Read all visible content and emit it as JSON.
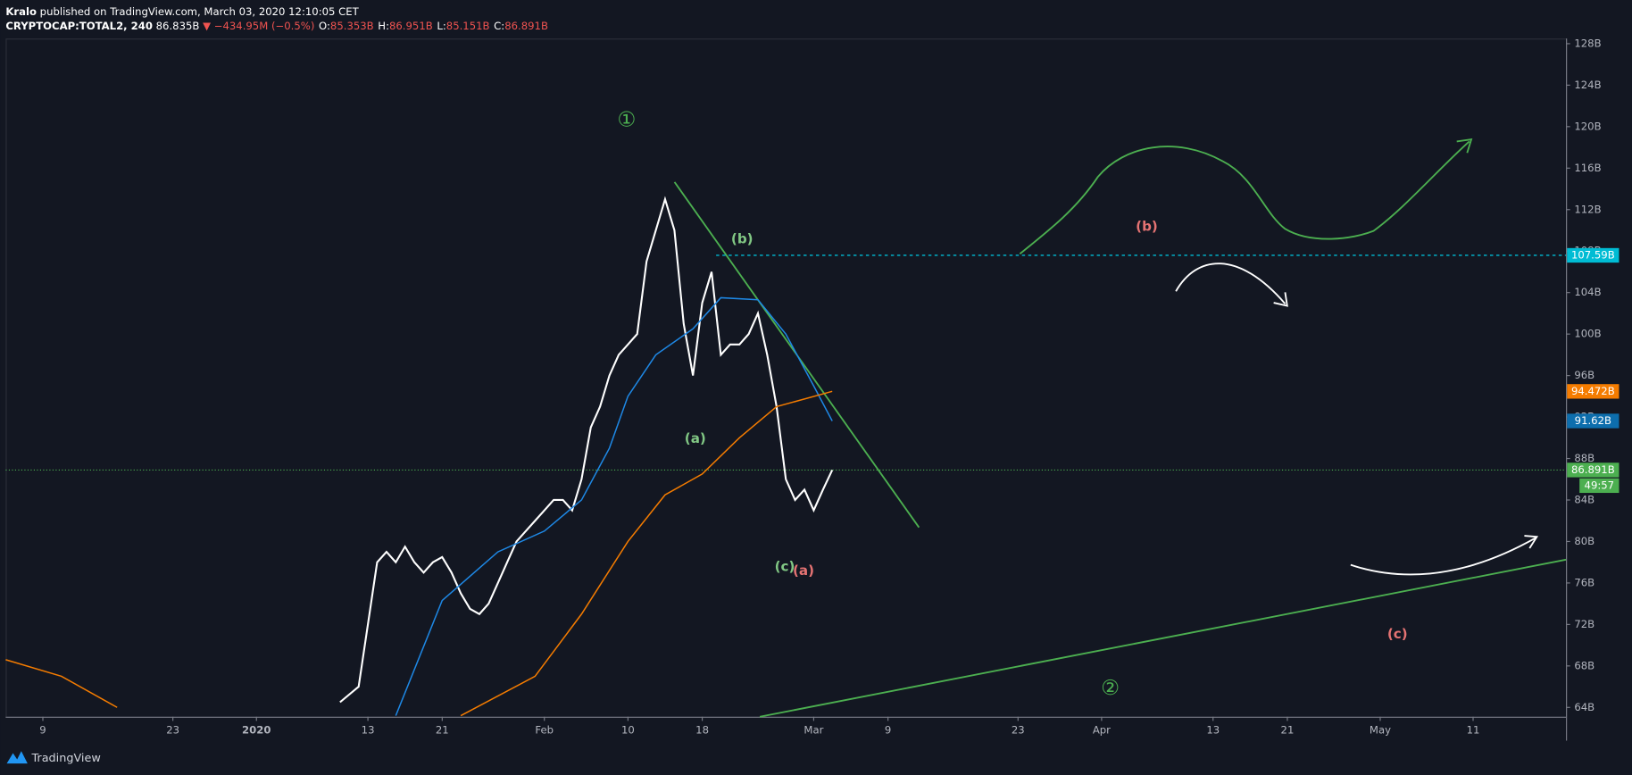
{
  "chart_data": {
    "type": "line",
    "author": "Kralo",
    "published": "published on TradingView.com, March 03, 2020 12:10:05 CET",
    "symbol": "CRYPTOCAP:TOTAL2, 240",
    "last": "86.835B",
    "change": "▼ −434.95M (−0.5%)",
    "ohlc": [
      {
        "key": "O:",
        "value": "85.353B"
      },
      {
        "key": "H:",
        "value": "86.951B"
      },
      {
        "key": "L:",
        "value": "85.151B"
      },
      {
        "key": "C:",
        "value": "86.891B"
      }
    ],
    "brand": "TradingView",
    "grid": false,
    "xlim": [
      "2019-12-05",
      "2020-05-21"
    ],
    "xticks": [
      {
        "value": "2019-12-09",
        "label": "9"
      },
      {
        "value": "2019-12-23",
        "label": "23"
      },
      {
        "value": "2020-01-01",
        "label": "2020"
      },
      {
        "value": "2020-01-13",
        "label": "13"
      },
      {
        "value": "2020-01-21",
        "label": "21"
      },
      {
        "value": "2020-02-01",
        "label": "Feb"
      },
      {
        "value": "2020-02-10",
        "label": "10"
      },
      {
        "value": "2020-02-18",
        "label": "18"
      },
      {
        "value": "2020-03-01",
        "label": "Mar"
      },
      {
        "value": "2020-03-09",
        "label": "9"
      },
      {
        "value": "2020-03-23",
        "label": "23"
      },
      {
        "value": "2020-04-01",
        "label": "Apr"
      },
      {
        "value": "2020-04-13",
        "label": "13"
      },
      {
        "value": "2020-04-21",
        "label": "21"
      },
      {
        "value": "2020-05-01",
        "label": "May"
      },
      {
        "value": "2020-05-11",
        "label": "11"
      }
    ],
    "ylim": [
      63.1,
      128.5
    ],
    "yticks": [
      {
        "value": 64,
        "label": "64B"
      },
      {
        "value": 68,
        "label": "68B"
      },
      {
        "value": 72,
        "label": "72B"
      },
      {
        "value": 76,
        "label": "76B"
      },
      {
        "value": 80,
        "label": "80B"
      },
      {
        "value": 84,
        "label": "84B"
      },
      {
        "value": 88,
        "label": "88B"
      },
      {
        "value": 92,
        "label": "92B"
      },
      {
        "value": 96,
        "label": "96B"
      },
      {
        "value": 100,
        "label": "100B"
      },
      {
        "value": 104,
        "label": "104B"
      },
      {
        "value": 108,
        "label": "108B"
      },
      {
        "value": 112,
        "label": "112B"
      },
      {
        "value": 116,
        "label": "116B"
      },
      {
        "value": 120,
        "label": "120B"
      },
      {
        "value": 124,
        "label": "124B"
      },
      {
        "value": 128,
        "label": "128B"
      }
    ],
    "series": [
      {
        "color": "#ffffff",
        "x": [
          "2020-01-10",
          "2020-01-12",
          "2020-01-13",
          "2020-01-14",
          "2020-01-15",
          "2020-01-16",
          "2020-01-17",
          "2020-01-18",
          "2020-01-19",
          "2020-01-20",
          "2020-01-21",
          "2020-01-22",
          "2020-01-23",
          "2020-01-24",
          "2020-01-25",
          "2020-01-26",
          "2020-01-27",
          "2020-01-28",
          "2020-01-29",
          "2020-01-30",
          "2020-01-31",
          "2020-02-01",
          "2020-02-02",
          "2020-02-03",
          "2020-02-04",
          "2020-02-05",
          "2020-02-06",
          "2020-02-07",
          "2020-02-08",
          "2020-02-09",
          "2020-02-10",
          "2020-02-11",
          "2020-02-12",
          "2020-02-13",
          "2020-02-14",
          "2020-02-15",
          "2020-02-16",
          "2020-02-17",
          "2020-02-18",
          "2020-02-19",
          "2020-02-20",
          "2020-02-21",
          "2020-02-22",
          "2020-02-23",
          "2020-02-24",
          "2020-02-25",
          "2020-02-26",
          "2020-02-27",
          "2020-02-28",
          "2020-02-29",
          "2020-03-01",
          "2020-03-02",
          "2020-03-03"
        ],
        "values": [
          64.5,
          66,
          72,
          78,
          79,
          78,
          79.5,
          78,
          77,
          78,
          78.5,
          77,
          75,
          73.5,
          73,
          74,
          76,
          78,
          80,
          81,
          82,
          83,
          84,
          84,
          83,
          86,
          91,
          93,
          96,
          98,
          99,
          100,
          107,
          110,
          113,
          110,
          101,
          96,
          103,
          106,
          98,
          99,
          99,
          100,
          102,
          98,
          93,
          86,
          84,
          85,
          83,
          85,
          86.891
        ]
      },
      {
        "color": "#1e88e5",
        "x": [
          "2020-01-16",
          "2020-01-21",
          "2020-01-27",
          "2020-02-01",
          "2020-02-05",
          "2020-02-08",
          "2020-02-10",
          "2020-02-13",
          "2020-02-17",
          "2020-02-20",
          "2020-02-24",
          "2020-02-27",
          "2020-03-01",
          "2020-03-03"
        ],
        "values": [
          63.2,
          74.3,
          79,
          81,
          84,
          89,
          94,
          98,
          100.5,
          103.5,
          103.3,
          100,
          95,
          91.62
        ]
      },
      {
        "color": "#f57c00",
        "x": [
          "2019-12-05",
          "2019-12-11",
          "2019-12-17",
          "2019-12-20",
          "2020-01-23",
          "2020-01-31",
          "2020-02-05",
          "2020-02-10",
          "2020-02-14",
          "2020-02-18",
          "2020-02-22",
          "2020-02-26",
          "2020-03-03"
        ],
        "values": [
          68.6,
          67,
          64,
          null,
          63.2,
          67,
          73,
          80,
          84.5,
          86.5,
          90,
          93,
          94.472
        ]
      }
    ],
    "price_labels": [
      {
        "value": 107.59,
        "label": "107.59B",
        "color": "#00bcd4"
      },
      {
        "value": 94.472,
        "label": "94.472B",
        "color": "#f57c00"
      },
      {
        "value": 91.62,
        "label": "91.62B",
        "color": "#0d6ead"
      },
      {
        "value": 86.891,
        "label": "86.891B",
        "color": "#4caf50"
      }
    ],
    "countdown": "49:57",
    "annotations": [
      "①",
      "(b)",
      "(a)",
      "(c)",
      "(a)",
      "(b)",
      "(c)",
      "②"
    ]
  }
}
